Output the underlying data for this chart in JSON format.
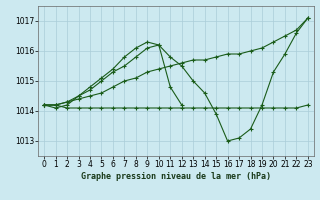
{
  "title": "Graphe pression niveau de la mer (hPa)",
  "bg_color": "#cce9f0",
  "grid_color": "#aacdd8",
  "line_color": "#1a5c1a",
  "ylim": [
    1012.5,
    1017.5
  ],
  "xlim": [
    -0.5,
    23.5
  ],
  "yticks": [
    1013,
    1014,
    1015,
    1016,
    1017
  ],
  "xticks": [
    0,
    1,
    2,
    3,
    4,
    5,
    6,
    7,
    8,
    9,
    10,
    11,
    12,
    13,
    14,
    15,
    16,
    17,
    18,
    19,
    20,
    21,
    22,
    23
  ],
  "series1": {
    "x": [
      0,
      1,
      2,
      3,
      4,
      5,
      6,
      7,
      8,
      9,
      10,
      11,
      12,
      13,
      14,
      15,
      16,
      17,
      18,
      19,
      20,
      21,
      22,
      23
    ],
    "y": [
      1014.2,
      1014.2,
      1014.1,
      1014.1,
      1014.1,
      1014.1,
      1014.1,
      1014.1,
      1014.1,
      1014.1,
      1014.1,
      1014.1,
      1014.1,
      1014.1,
      1014.1,
      1014.1,
      1014.1,
      1014.1,
      1014.1,
      1014.1,
      1014.1,
      1014.1,
      1014.1,
      1014.2
    ]
  },
  "series2": {
    "x": [
      0,
      1,
      2,
      3,
      4,
      5,
      6,
      7,
      8,
      9,
      10,
      11,
      12,
      13,
      14,
      15,
      16,
      17,
      18,
      19,
      20,
      21,
      22,
      23
    ],
    "y": [
      1014.2,
      1014.2,
      1014.3,
      1014.4,
      1014.5,
      1014.6,
      1014.8,
      1015.0,
      1015.1,
      1015.3,
      1015.4,
      1015.5,
      1015.6,
      1015.7,
      1015.7,
      1015.8,
      1015.9,
      1015.9,
      1016.0,
      1016.1,
      1016.3,
      1016.5,
      1016.7,
      1017.1
    ]
  },
  "series3": {
    "x": [
      0,
      1,
      2,
      3,
      4,
      5,
      6,
      7,
      8,
      9,
      10,
      11,
      12,
      13,
      14,
      15,
      16,
      17,
      18,
      19,
      20,
      21,
      22,
      23
    ],
    "y": [
      1014.2,
      1014.2,
      1014.3,
      1014.5,
      1014.7,
      1015.0,
      1015.3,
      1015.5,
      1015.8,
      1016.1,
      1016.2,
      1015.8,
      1015.5,
      1015.0,
      1014.6,
      1013.9,
      1013.0,
      1013.1,
      1013.4,
      1014.2,
      1015.3,
      1015.9,
      1016.6,
      1017.1
    ]
  },
  "series4": {
    "x": [
      0,
      1,
      2,
      3,
      4,
      5,
      6,
      7,
      8,
      9,
      10,
      11,
      12
    ],
    "y": [
      1014.2,
      1014.1,
      1014.2,
      1014.5,
      1014.8,
      1015.1,
      1015.4,
      1015.8,
      1016.1,
      1016.3,
      1016.2,
      1014.8,
      1014.2
    ]
  },
  "title_fontsize": 6,
  "tick_fontsize": 5.5
}
